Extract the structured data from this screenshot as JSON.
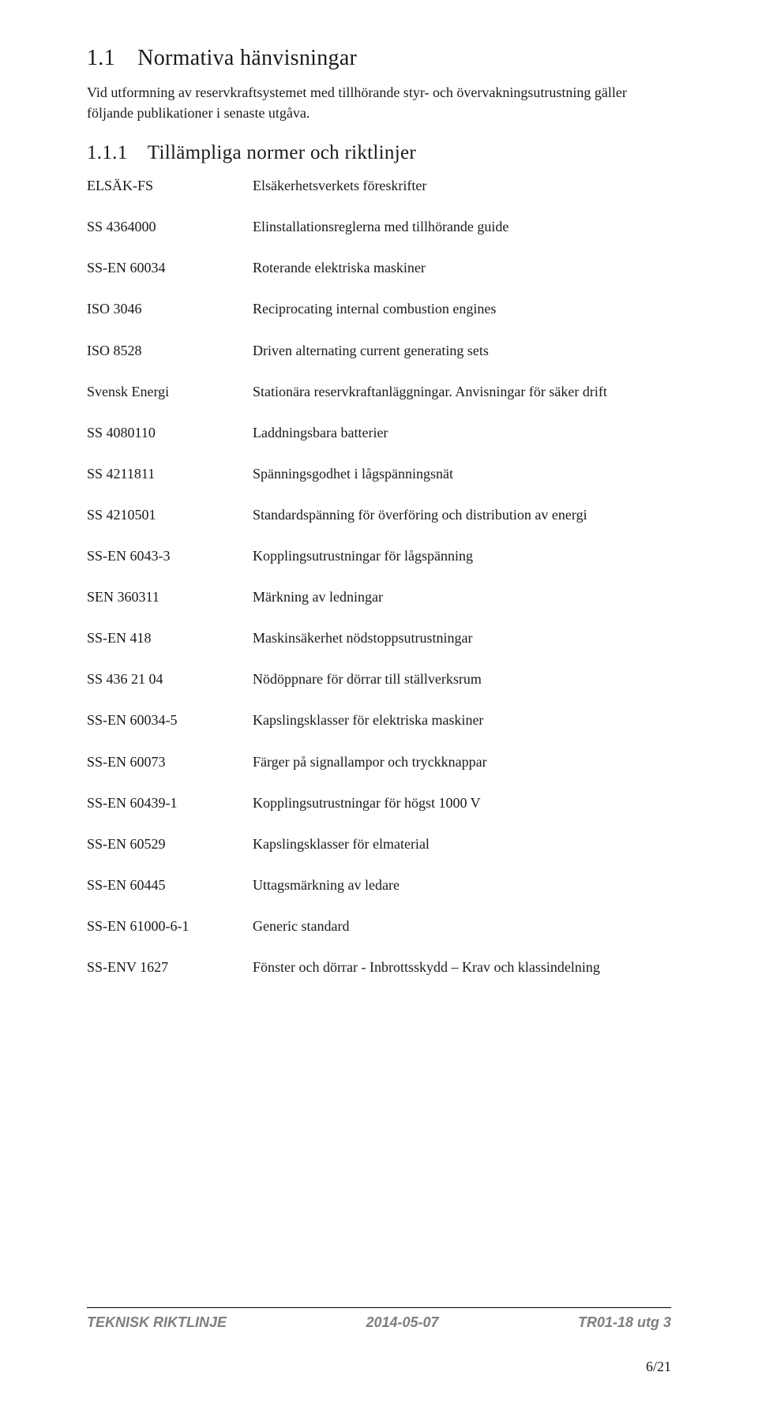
{
  "heading1": "1.1 Normativa hänvisningar",
  "intro": "Vid utformning av reservkraftsystemet med tillhörande styr- och övervakningsutrustning gäller följande publikationer i senaste utgåva.",
  "heading2": "1.1.1 Tillämpliga normer och riktlinjer",
  "rows": [
    {
      "code": "ELSÄK-FS",
      "desc": "Elsäkerhetsverkets föreskrifter"
    },
    {
      "code": "SS 4364000",
      "desc": "Elinstallationsreglerna med tillhörande guide"
    },
    {
      "code": "SS-EN 60034",
      "desc": "Roterande elektriska maskiner"
    },
    {
      "code": "ISO 3046",
      "desc": "Reciprocating internal combustion engines"
    },
    {
      "code": "ISO 8528",
      "desc": "Driven alternating current generating sets"
    },
    {
      "code": "Svensk Energi",
      "desc": "Stationära reservkraftanläggningar. Anvisningar för säker drift"
    },
    {
      "code": "SS 4080110",
      "desc": "Laddningsbara batterier"
    },
    {
      "code": "SS 4211811",
      "desc": "Spänningsgodhet i lågspänningsnät"
    },
    {
      "code": "SS 4210501",
      "desc": "Standardspänning för överföring och distribution av energi"
    },
    {
      "code": "SS-EN 6043-3",
      "desc": "Kopplingsutrustningar för lågspänning"
    },
    {
      "code": "SEN 360311",
      "desc": "Märkning av ledningar"
    },
    {
      "code": "SS-EN 418",
      "desc": "Maskinsäkerhet nödstoppsutrustningar"
    },
    {
      "code": "SS 436 21 04",
      "desc": "Nödöppnare för dörrar till ställverksrum"
    },
    {
      "code": "SS-EN 60034-5",
      "desc": "Kapslingsklasser för elektriska maskiner"
    },
    {
      "code": "SS-EN 60073",
      "desc": "Färger på signallampor och tryckknappar"
    },
    {
      "code": "SS-EN 60439-1",
      "desc": "Kopplingsutrustningar för högst 1000 V"
    },
    {
      "code": "SS-EN 60529",
      "desc": "Kapslingsklasser för elmaterial"
    },
    {
      "code": "SS-EN 60445",
      "desc": "Uttagsmärkning av ledare"
    },
    {
      "code": "SS-EN 61000-6-1",
      "desc": "Generic standard"
    },
    {
      "code": "SS-ENV 1627",
      "desc": "Fönster och dörrar - Inbrottsskydd – Krav och klassindelning"
    }
  ],
  "footer": {
    "left": "TEKNISK RIKTLINJE",
    "center": "2014-05-07",
    "right": "TR01-18 utg 3"
  },
  "pageNumber": "6/21"
}
